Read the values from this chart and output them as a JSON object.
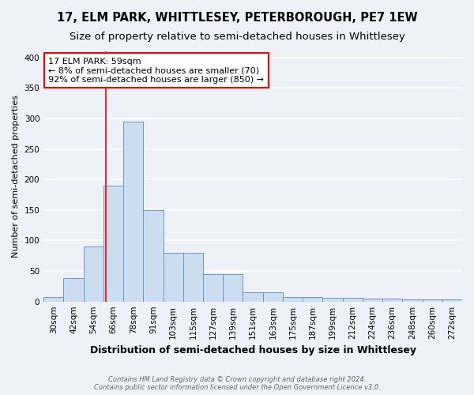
{
  "title": "17, ELM PARK, WHITTLESEY, PETERBOROUGH, PE7 1EW",
  "subtitle": "Size of property relative to semi-detached houses in Whittlesey",
  "xlabel": "Distribution of semi-detached houses by size in Whittlesey",
  "ylabel": "Number of semi-detached properties",
  "bar_labels": [
    "30sqm",
    "42sqm",
    "54sqm",
    "66sqm",
    "78sqm",
    "91sqm",
    "103sqm",
    "115sqm",
    "127sqm",
    "139sqm",
    "151sqm",
    "163sqm",
    "175sqm",
    "187sqm",
    "199sqm",
    "212sqm",
    "224sqm",
    "236sqm",
    "248sqm",
    "260sqm",
    "272sqm"
  ],
  "bar_heights": [
    8,
    38,
    90,
    190,
    295,
    150,
    80,
    80,
    45,
    45,
    15,
    15,
    7,
    7,
    6,
    6,
    5,
    5,
    4,
    4,
    4
  ],
  "bar_color": "#ccddf0",
  "bar_edge_color": "#6699cc",
  "red_line_x": 2.62,
  "annotation_text": "17 ELM PARK: 59sqm\n← 8% of semi-detached houses are smaller (70)\n92% of semi-detached houses are larger (850) →",
  "annotation_box_color": "white",
  "annotation_box_edge": "red",
  "ylim": [
    0,
    410
  ],
  "yticks": [
    0,
    50,
    100,
    150,
    200,
    250,
    300,
    350,
    400
  ],
  "footer": "Contains HM Land Registry data © Crown copyright and database right 2024.\nContains public sector information licensed under the Open Government Licence v3.0.",
  "background_color": "#eef2f8",
  "grid_color": "white",
  "title_fontsize": 10.5,
  "subtitle_fontsize": 9.5,
  "ylabel_fontsize": 8,
  "xlabel_fontsize": 9,
  "tick_fontsize": 7.5,
  "annotation_fontsize": 8,
  "footer_fontsize": 6
}
